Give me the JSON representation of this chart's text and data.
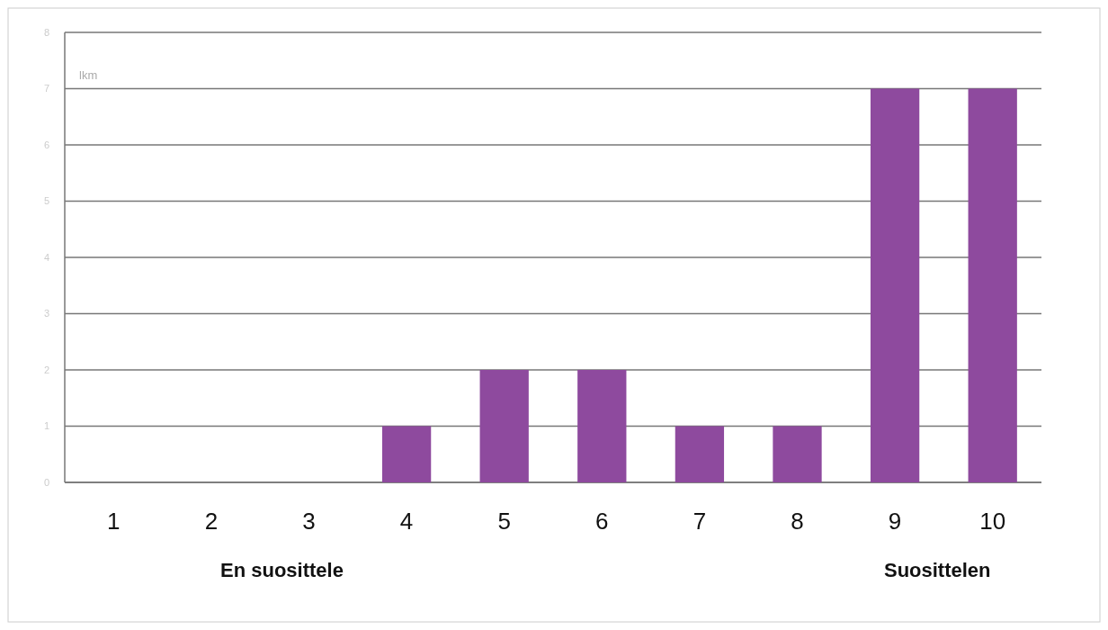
{
  "chart_data": {
    "type": "bar",
    "ylabel": "lkm",
    "categories": [
      "1",
      "2",
      "3",
      "4",
      "5",
      "6",
      "7",
      "8",
      "9",
      "10"
    ],
    "values": [
      0,
      0,
      0,
      1,
      2,
      2,
      1,
      1,
      7,
      7
    ],
    "color": "#8e4a9e",
    "ylim": [
      0,
      8
    ],
    "yticks": [
      0,
      1,
      2,
      3,
      4,
      5,
      6,
      7,
      8
    ],
    "grid": "y",
    "annotations": [
      "En suosittele",
      "Suosittelen"
    ]
  }
}
